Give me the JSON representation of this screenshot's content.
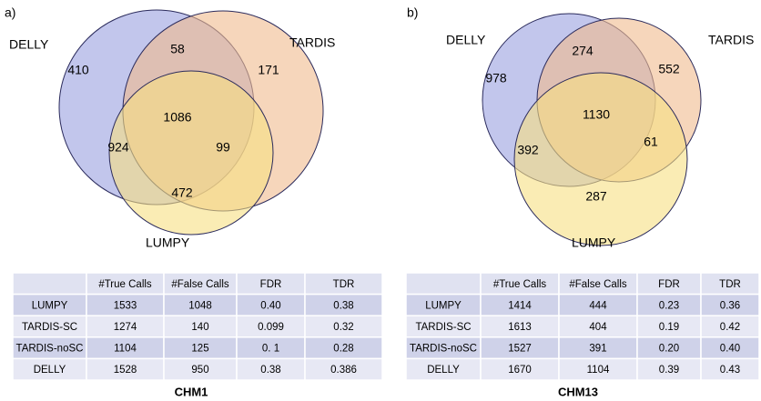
{
  "panels": [
    {
      "label": "a)",
      "venn": {
        "sets": [
          "DELLY",
          "TARDIS",
          "LUMPY"
        ],
        "regions": {
          "delly_only": 410,
          "delly_tardis": 58,
          "tardis_only": 171,
          "all": 1086,
          "delly_lumpy": 924,
          "tardis_lumpy": 99,
          "lumpy_only": 472
        }
      },
      "table": {
        "header": [
          "#True Calls",
          "#False Calls",
          "FDR",
          "TDR"
        ],
        "rows": [
          [
            "LUMPY",
            "1533",
            "1048",
            "0.40",
            "0.38"
          ],
          [
            "TARDIS-SC",
            "1274",
            "140",
            "0.099",
            "0.32"
          ],
          [
            "TARDIS-noSC",
            "1104",
            "125",
            "0. 1",
            "0.28"
          ],
          [
            "DELLY",
            "1528",
            "950",
            "0.38",
            "0.386"
          ]
        ],
        "caption": "CHM1"
      }
    },
    {
      "label": "b)",
      "venn": {
        "sets": [
          "DELLY",
          "TARDIS",
          "LUMPY"
        ],
        "regions": {
          "delly_only": 978,
          "delly_tardis": 274,
          "tardis_only": 552,
          "all": 1130,
          "delly_lumpy": 392,
          "tardis_lumpy": 61,
          "lumpy_only": 287
        }
      },
      "table": {
        "header": [
          "#True Calls",
          "#False Calls",
          "FDR",
          "TDR"
        ],
        "rows": [
          [
            "LUMPY",
            "1414",
            "444",
            "0.23",
            "0.36"
          ],
          [
            "TARDIS-SC",
            "1613",
            "404",
            "0.19",
            "0.42"
          ],
          [
            "TARDIS-noSC",
            "1527",
            "391",
            "0.20",
            "0.40"
          ],
          [
            "DELLY",
            "1670",
            "1104",
            "0.39",
            "0.43"
          ]
        ],
        "caption": "CHM13"
      }
    }
  ]
}
